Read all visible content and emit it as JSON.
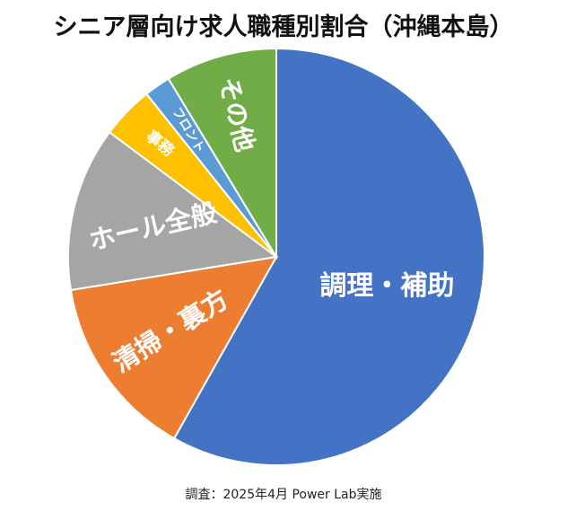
{
  "chart_data": {
    "type": "pie",
    "title": "シニア層向け求人職種別割合（沖縄本島）",
    "source": "調査：2025年4月 Power Lab実施",
    "slices": [
      {
        "label": "調理・補助",
        "percent": 57,
        "color": "#4472C4"
      },
      {
        "label": "清掃・裏方",
        "percent": 14,
        "color": "#ED7D31"
      },
      {
        "label": "ホール全般",
        "percent": 12.5,
        "color": "#A5A5A5"
      },
      {
        "label": "事務",
        "percent": 4,
        "color": "#FFC000"
      },
      {
        "label": "フロント",
        "percent": 2,
        "color": "#5B9BD5"
      },
      {
        "label": "その他",
        "percent": 8.5,
        "color": "#70AD47"
      }
    ]
  }
}
